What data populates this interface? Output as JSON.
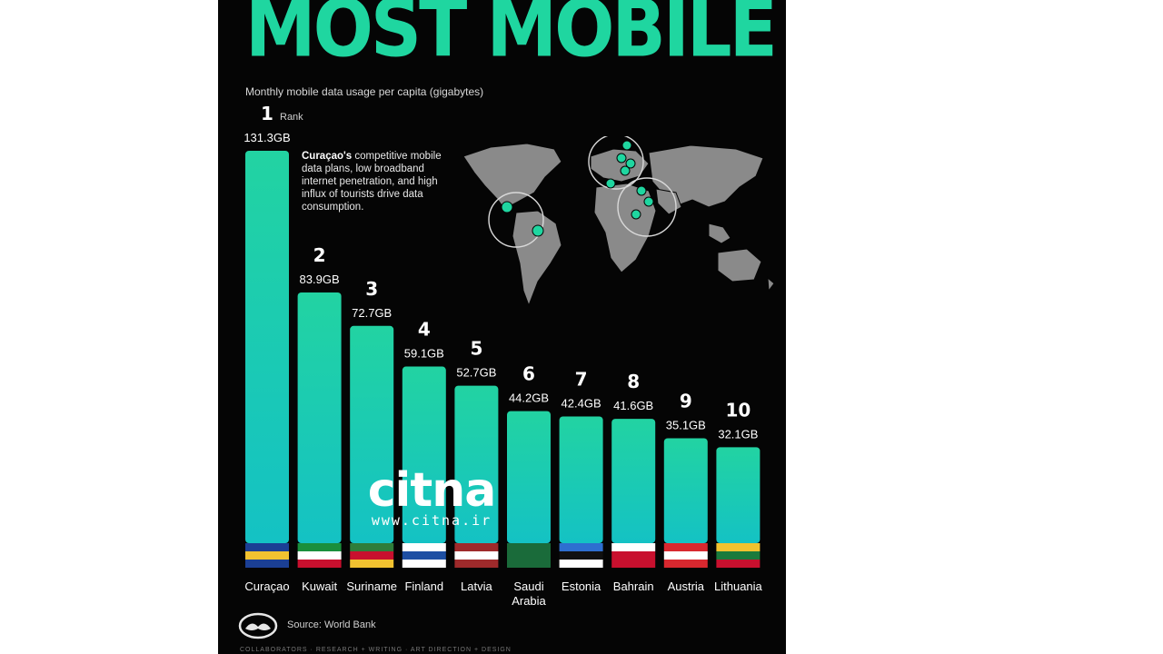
{
  "poster": {
    "headline": "MOST MOBILE DATA?",
    "subtitle": "Monthly mobile data usage per capita (gigabytes)",
    "rank_word": "Rank",
    "annotation_bold": "Curaçao's",
    "annotation_rest": " competitive mobile data plans, low broadband internet penetration, and high influx of tourists drive data consumption.",
    "source": "Source: World Bank",
    "credits": "COLLABORATORS · RESEARCH + WRITING · ART DIRECTION + DESIGN"
  },
  "watermark": {
    "logo": "citna",
    "url": "www.citna.ir"
  },
  "colors": {
    "accent": "#1fd6a0",
    "bar_top": "#22d3a2",
    "bar_bottom": "#14c2c4",
    "background": "#050505",
    "map": "#8a8a8a"
  },
  "icons": {
    "map": "world-map-icon",
    "brand": "visual-capitalist-logo-icon"
  },
  "chart_data": {
    "type": "bar",
    "title": "MOST MOBILE DATA?",
    "subtitle": "Monthly mobile data usage per capita (gigabytes)",
    "categories": [
      "Curaçao",
      "Kuwait",
      "Suriname",
      "Finland",
      "Latvia",
      "Saudi Arabia",
      "Estonia",
      "Bahrain",
      "Austria",
      "Lithuania"
    ],
    "ranks": [
      "1",
      "2",
      "3",
      "4",
      "5",
      "6",
      "7",
      "8",
      "9",
      "10"
    ],
    "values": [
      131.3,
      83.9,
      72.7,
      59.1,
      52.7,
      44.2,
      42.4,
      41.6,
      35.1,
      32.1
    ],
    "value_labels": [
      "131.3GB",
      "83.9GB",
      "72.7GB",
      "59.1GB",
      "52.7GB",
      "44.2GB",
      "42.4GB",
      "41.6GB",
      "35.1GB",
      "32.1GB"
    ],
    "unit": "GB",
    "ylim": [
      0,
      131.3
    ],
    "grid": false,
    "legend": "none"
  }
}
